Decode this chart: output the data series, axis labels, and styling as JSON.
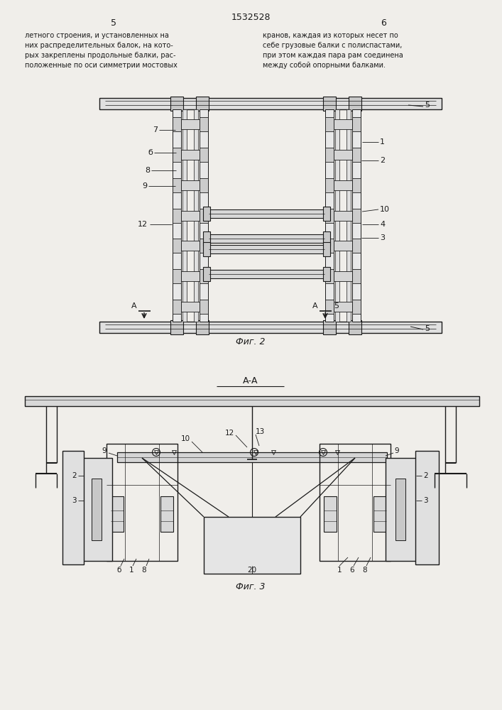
{
  "patent_number": "1532528",
  "page_numbers": [
    "5",
    "6"
  ],
  "text_col1": [
    "летного строения, и установленных на",
    "них распределительных балок, на кото-",
    "рых закреплены продольные балки, рас-",
    "положенные по оси симметрии мостовых"
  ],
  "text_col2": [
    "кранов, каждая из которых несет по",
    "себе грузовые балки с полиспастами,",
    "при этом каждая пара рам соединена",
    "между собой опорными балками."
  ],
  "fig2_caption": "Фиг. 2",
  "fig3_caption": "Фиг. 3",
  "section_label": "А-А",
  "bg_color": "#f0eeea",
  "line_color": "#1a1a1a"
}
